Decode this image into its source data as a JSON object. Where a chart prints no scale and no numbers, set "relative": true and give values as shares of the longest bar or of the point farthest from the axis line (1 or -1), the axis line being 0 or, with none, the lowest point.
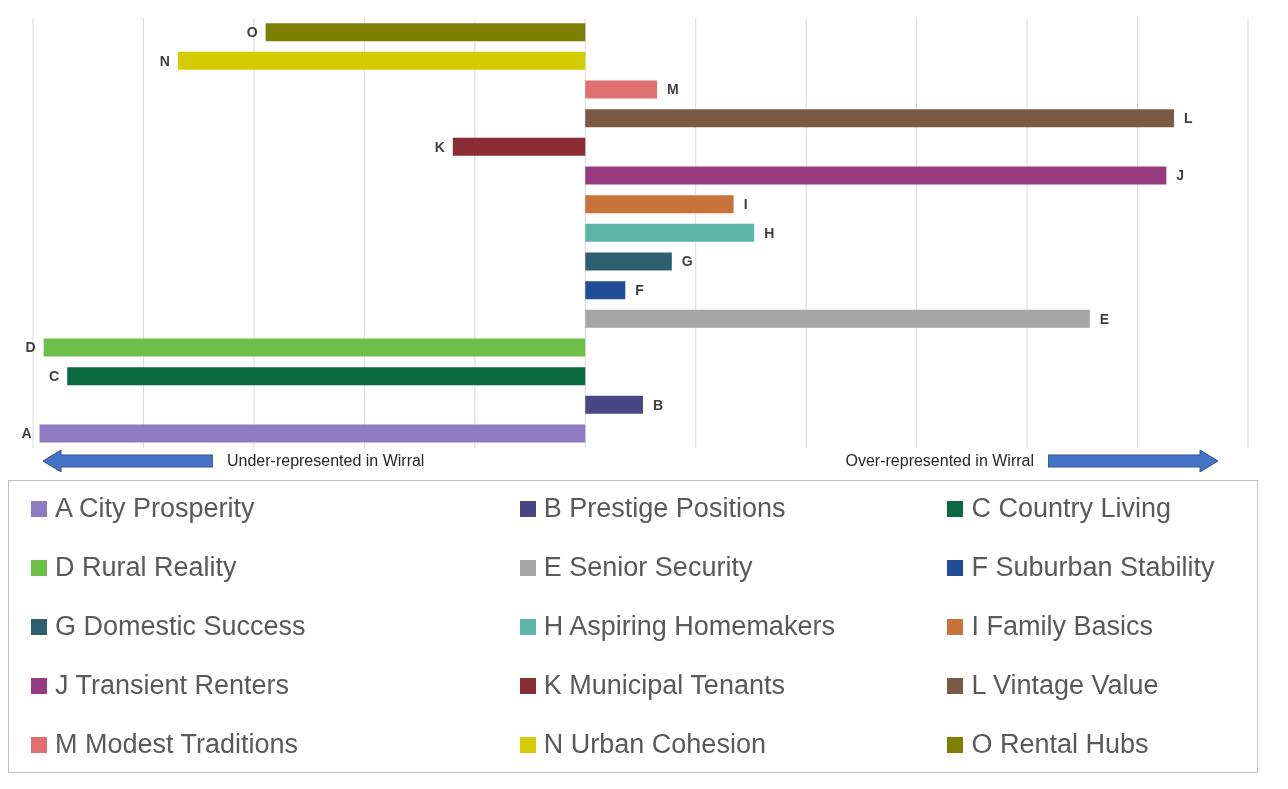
{
  "chart_data": {
    "type": "bar",
    "orientation": "horizontal",
    "relative": true,
    "stacked": true,
    "grid": "x",
    "legend": "bottom",
    "categories": [
      "O",
      "N",
      "M",
      "L",
      "K",
      "J",
      "I",
      "H",
      "G",
      "F",
      "E",
      "D",
      "C",
      "B",
      "A"
    ],
    "series": [
      {
        "name": "A City Prosperity",
        "color": "#8e7cc3",
        "values": [
          null,
          null,
          null,
          null,
          null,
          null,
          null,
          null,
          null,
          null,
          null,
          null,
          null,
          null,
          -0.927
        ]
      },
      {
        "name": "B Prestige Positions",
        "color": "#4a4585",
        "values": [
          null,
          null,
          null,
          null,
          null,
          null,
          null,
          null,
          null,
          null,
          null,
          null,
          null,
          0.098,
          null
        ]
      },
      {
        "name": "C Country Living",
        "color": "#0b6a43",
        "values": [
          null,
          null,
          null,
          null,
          null,
          null,
          null,
          null,
          null,
          null,
          null,
          null,
          -0.88,
          null,
          null
        ]
      },
      {
        "name": "D Rural Reality",
        "color": "#6cc04a",
        "values": [
          null,
          null,
          null,
          null,
          null,
          null,
          null,
          null,
          null,
          null,
          null,
          -0.92,
          null,
          null,
          null
        ]
      },
      {
        "name": "E Senior Security",
        "color": "#a6a6a6",
        "values": [
          null,
          null,
          null,
          null,
          null,
          null,
          null,
          null,
          null,
          null,
          0.857,
          null,
          null,
          null,
          null
        ]
      },
      {
        "name": "F Suburban Stability",
        "color": "#1f4e96",
        "values": [
          null,
          null,
          null,
          null,
          null,
          null,
          null,
          null,
          null,
          0.068,
          null,
          null,
          null,
          null,
          null
        ]
      },
      {
        "name": "G Domestic Success",
        "color": "#2e5f6e",
        "values": [
          null,
          null,
          null,
          null,
          null,
          null,
          null,
          null,
          0.147,
          null,
          null,
          null,
          null,
          null,
          null
        ]
      },
      {
        "name": "H Aspiring Homemakers",
        "color": "#5bb5a8",
        "values": [
          null,
          null,
          null,
          null,
          null,
          null,
          null,
          0.287,
          null,
          null,
          null,
          null,
          null,
          null,
          null
        ]
      },
      {
        "name": "I Family Basics",
        "color": "#c8733a",
        "values": [
          null,
          null,
          null,
          null,
          null,
          null,
          0.252,
          null,
          null,
          null,
          null,
          null,
          null,
          null,
          null
        ]
      },
      {
        "name": "J Transient Renters",
        "color": "#983a80",
        "values": [
          null,
          null,
          null,
          null,
          null,
          0.987,
          null,
          null,
          null,
          null,
          null,
          null,
          null,
          null,
          null
        ]
      },
      {
        "name": "K Municipal Tenants",
        "color": "#8b2e33",
        "values": [
          null,
          null,
          null,
          null,
          -0.225,
          null,
          null,
          null,
          null,
          null,
          null,
          null,
          null,
          null,
          null
        ]
      },
      {
        "name": "L Vintage Value",
        "color": "#7a5a45",
        "values": [
          null,
          null,
          null,
          1,
          null,
          null,
          null,
          null,
          null,
          null,
          null,
          null,
          null,
          null,
          null
        ]
      },
      {
        "name": "M Modest Traditions",
        "color": "#e07070",
        "values": [
          null,
          null,
          0.122,
          null,
          null,
          null,
          null,
          null,
          null,
          null,
          null,
          null,
          null,
          null,
          null
        ]
      },
      {
        "name": "N Urban Cohesion",
        "color": "#d4cc00",
        "values": [
          null,
          -0.692,
          null,
          null,
          null,
          null,
          null,
          null,
          null,
          null,
          null,
          null,
          null,
          null,
          null
        ]
      },
      {
        "name": "O Rental Hubs",
        "color": "#7f7f00",
        "values": [
          -0.543,
          null,
          null,
          null,
          null,
          null,
          null,
          null,
          null,
          null,
          null,
          null,
          null,
          null,
          null
        ]
      }
    ],
    "annotations": [
      "Under-represented in Wirral",
      "Over-represented in Wirral"
    ]
  }
}
